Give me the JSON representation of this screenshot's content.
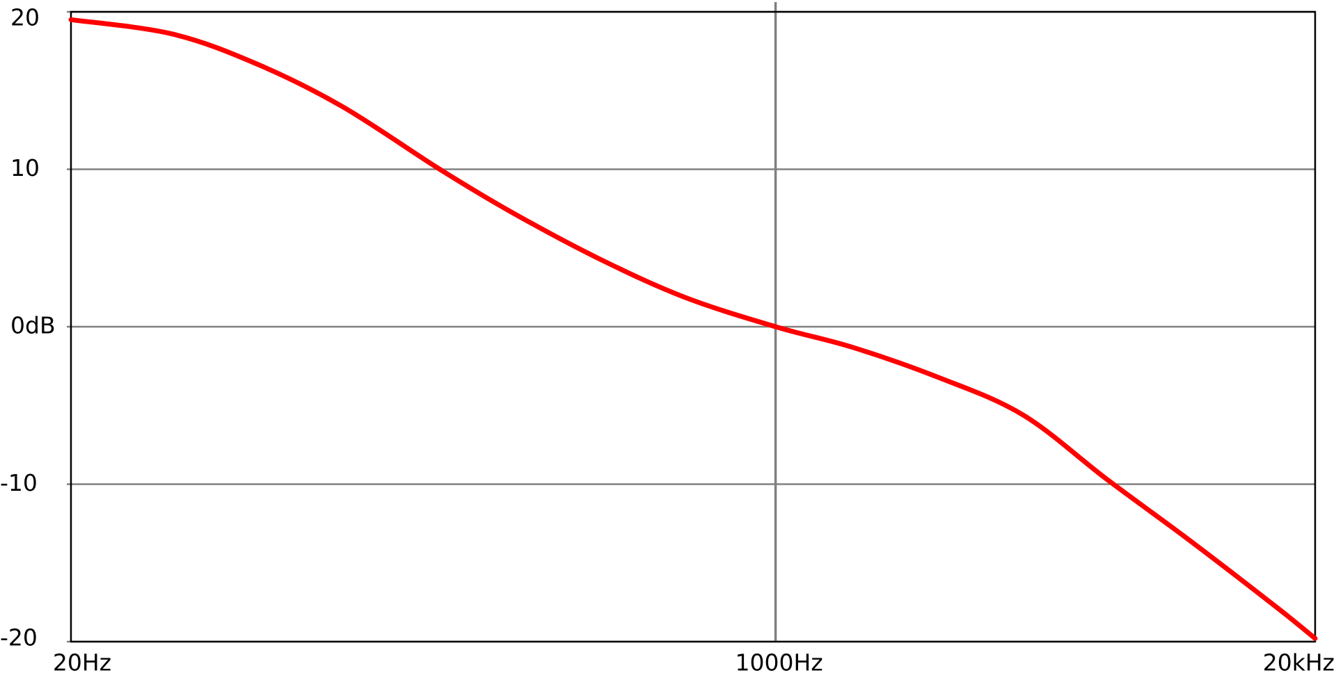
{
  "chart_data": {
    "type": "line",
    "log_x": true,
    "grid": true,
    "x": [
      20,
      35,
      56,
      90,
      155,
      230,
      370,
      600,
      1000,
      1530,
      2460,
      3950,
      6300,
      10000,
      16300,
      20000
    ],
    "series": [
      {
        "color": "#ff0000",
        "values": [
          19.5,
          18.6,
          16.7,
          14.0,
          10.0,
          7.3,
          4.4,
          1.9,
          0,
          -1.3,
          -3.2,
          -5.6,
          -9.7,
          -13.6,
          -17.9,
          -19.8
        ]
      }
    ],
    "xlim": [
      20,
      20000
    ],
    "xticks": [
      {
        "value": 20,
        "label": "20Hz"
      },
      {
        "value": 1000,
        "label": "1000Hz"
      },
      {
        "value": 20000,
        "label": "20kHz"
      }
    ],
    "ylim": [
      -20,
      20
    ],
    "yticks": [
      20,
      10,
      {
        "value": 0,
        "label": "0dB"
      },
      -10,
      -20
    ]
  }
}
